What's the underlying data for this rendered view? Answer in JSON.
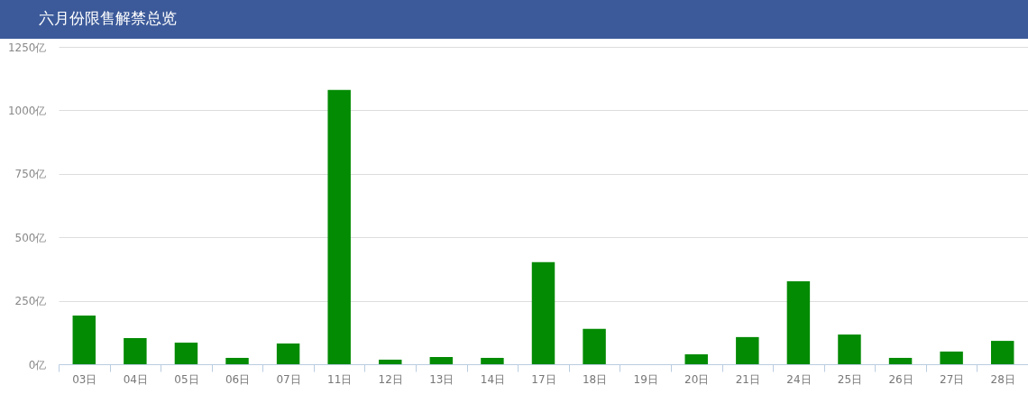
{
  "chart_data": {
    "type": "bar",
    "title": "六月份限售解禁总览",
    "categories": [
      "03日",
      "04日",
      "05日",
      "06日",
      "07日",
      "11日",
      "12日",
      "13日",
      "14日",
      "17日",
      "18日",
      "19日",
      "20日",
      "21日",
      "24日",
      "25日",
      "26日",
      "27日",
      "28日"
    ],
    "values": [
      192,
      103,
      85,
      25,
      82,
      1080,
      18,
      28,
      25,
      402,
      139,
      0,
      39,
      107,
      327,
      117,
      25,
      50,
      92
    ],
    "color": "#038b03",
    "ylim": [
      0,
      1250
    ],
    "yticks": [
      {
        "value": 0,
        "label": "0亿"
      },
      {
        "value": 250,
        "label": "250亿"
      },
      {
        "value": 500,
        "label": "500亿"
      },
      {
        "value": 750,
        "label": "750亿"
      },
      {
        "value": 1000,
        "label": "1000亿"
      },
      {
        "value": 1250,
        "label": "1250亿"
      }
    ],
    "grid": "y"
  }
}
